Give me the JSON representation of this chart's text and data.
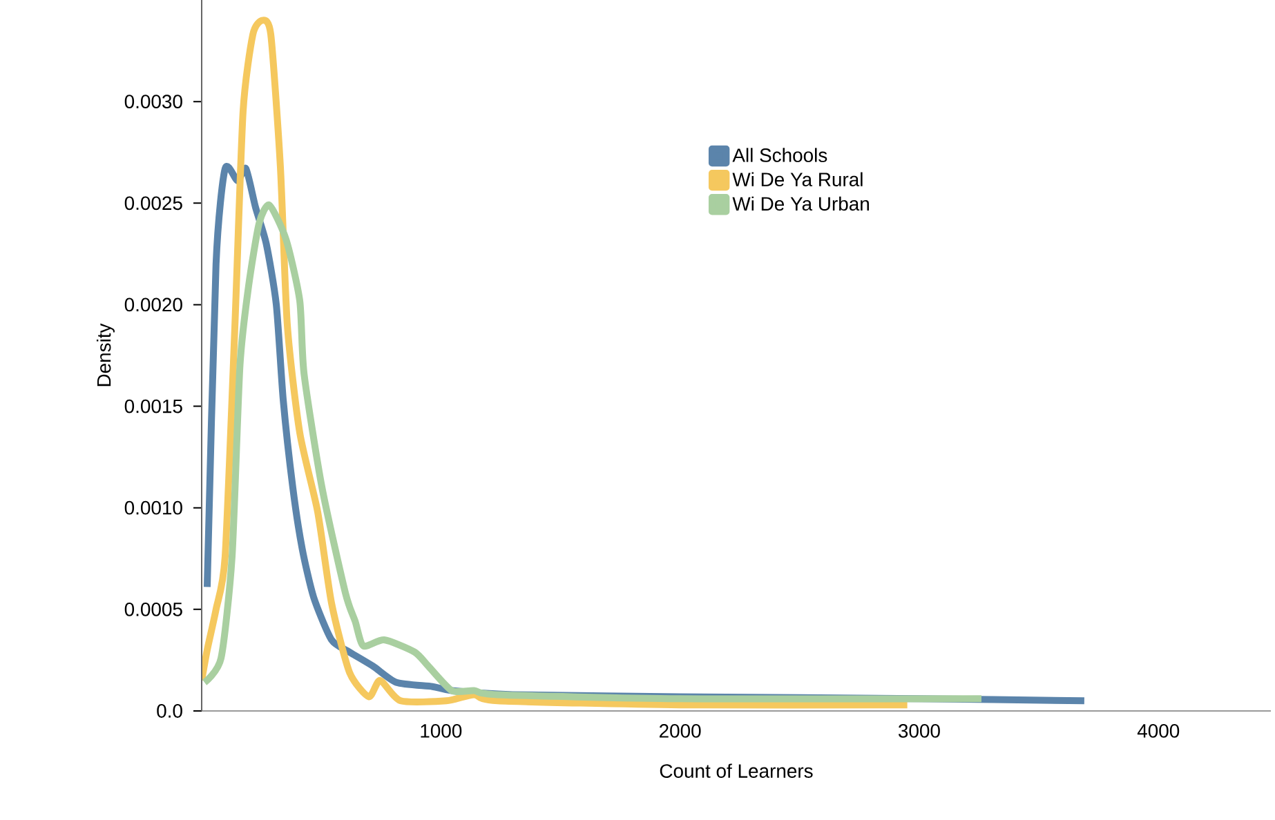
{
  "chart_data": {
    "type": "line",
    "xlabel": "Count of Learners",
    "ylabel": "Density",
    "xlim": [
      0,
      4470
    ],
    "ylim": [
      0,
      0.0035
    ],
    "xticks": [
      1000,
      2000,
      3000,
      4000
    ],
    "yticks": [
      {
        "value": 0,
        "label": "0.0"
      },
      {
        "value": 0.0005,
        "label": "0.0005"
      },
      {
        "value": 0.001,
        "label": "0.0010"
      },
      {
        "value": 0.0015,
        "label": "0.0015"
      },
      {
        "value": 0.002,
        "label": "0.0020"
      },
      {
        "value": 0.0025,
        "label": "0.0025"
      },
      {
        "value": 0.003,
        "label": "0.0030"
      }
    ],
    "legend": "right",
    "grid": false,
    "marker": "none",
    "line_style": "solid",
    "series": [
      {
        "name": "All Schools",
        "color": "#5b84ab",
        "x": [
          23,
          60,
          98,
          150,
          185,
          225,
          270,
          312,
          341,
          381,
          420,
          468,
          543,
          618,
          717,
          815,
          965,
          1046,
          1300,
          2000,
          3000,
          3690
        ],
        "values": [
          0.00061,
          0.0022,
          0.00267,
          0.00261,
          0.00267,
          0.00248,
          0.0023,
          0.002,
          0.00153,
          0.0011,
          0.0008,
          0.00056,
          0.00035,
          0.00029,
          0.00022,
          0.00014,
          0.00012,
          0.0001,
          8e-05,
          7e-05,
          6e-05,
          5e-05
        ]
      },
      {
        "name": "Wi De Ya Rural",
        "color": "#f5c85e",
        "x": [
          0,
          23,
          60,
          98,
          139,
          173,
          214,
          254,
          289,
          329,
          358,
          410,
          485,
          543,
          618,
          699,
          746,
          832,
          1023,
          1139,
          1237,
          2000,
          2950
        ],
        "values": [
          0.00015,
          0.0003,
          0.0005,
          0.00076,
          0.0019,
          0.00295,
          0.00333,
          0.0034,
          0.00333,
          0.00268,
          0.0019,
          0.00137,
          0.00098,
          0.00053,
          0.00019,
          7e-05,
          0.00015,
          5e-05,
          5e-05,
          8e-05,
          5e-05,
          3e-05,
          3e-05
        ]
      },
      {
        "name": "Wi De Ya Urban",
        "color": "#a9cfa0",
        "x": [
          12,
          81,
          127,
          160,
          196,
          240,
          283,
          353,
          410,
          428,
          503,
          601,
          642,
          676,
          763,
          890,
          948,
          1046,
          1139,
          1237,
          2000,
          3260
        ],
        "values": [
          0.00014,
          0.00026,
          0.00076,
          0.0017,
          0.00209,
          0.0024,
          0.00249,
          0.00232,
          0.00202,
          0.00166,
          0.0011,
          0.00058,
          0.00044,
          0.00032,
          0.00035,
          0.00029,
          0.00022,
          0.0001,
          0.0001,
          8e-05,
          6e-05,
          6e-05
        ]
      }
    ]
  }
}
